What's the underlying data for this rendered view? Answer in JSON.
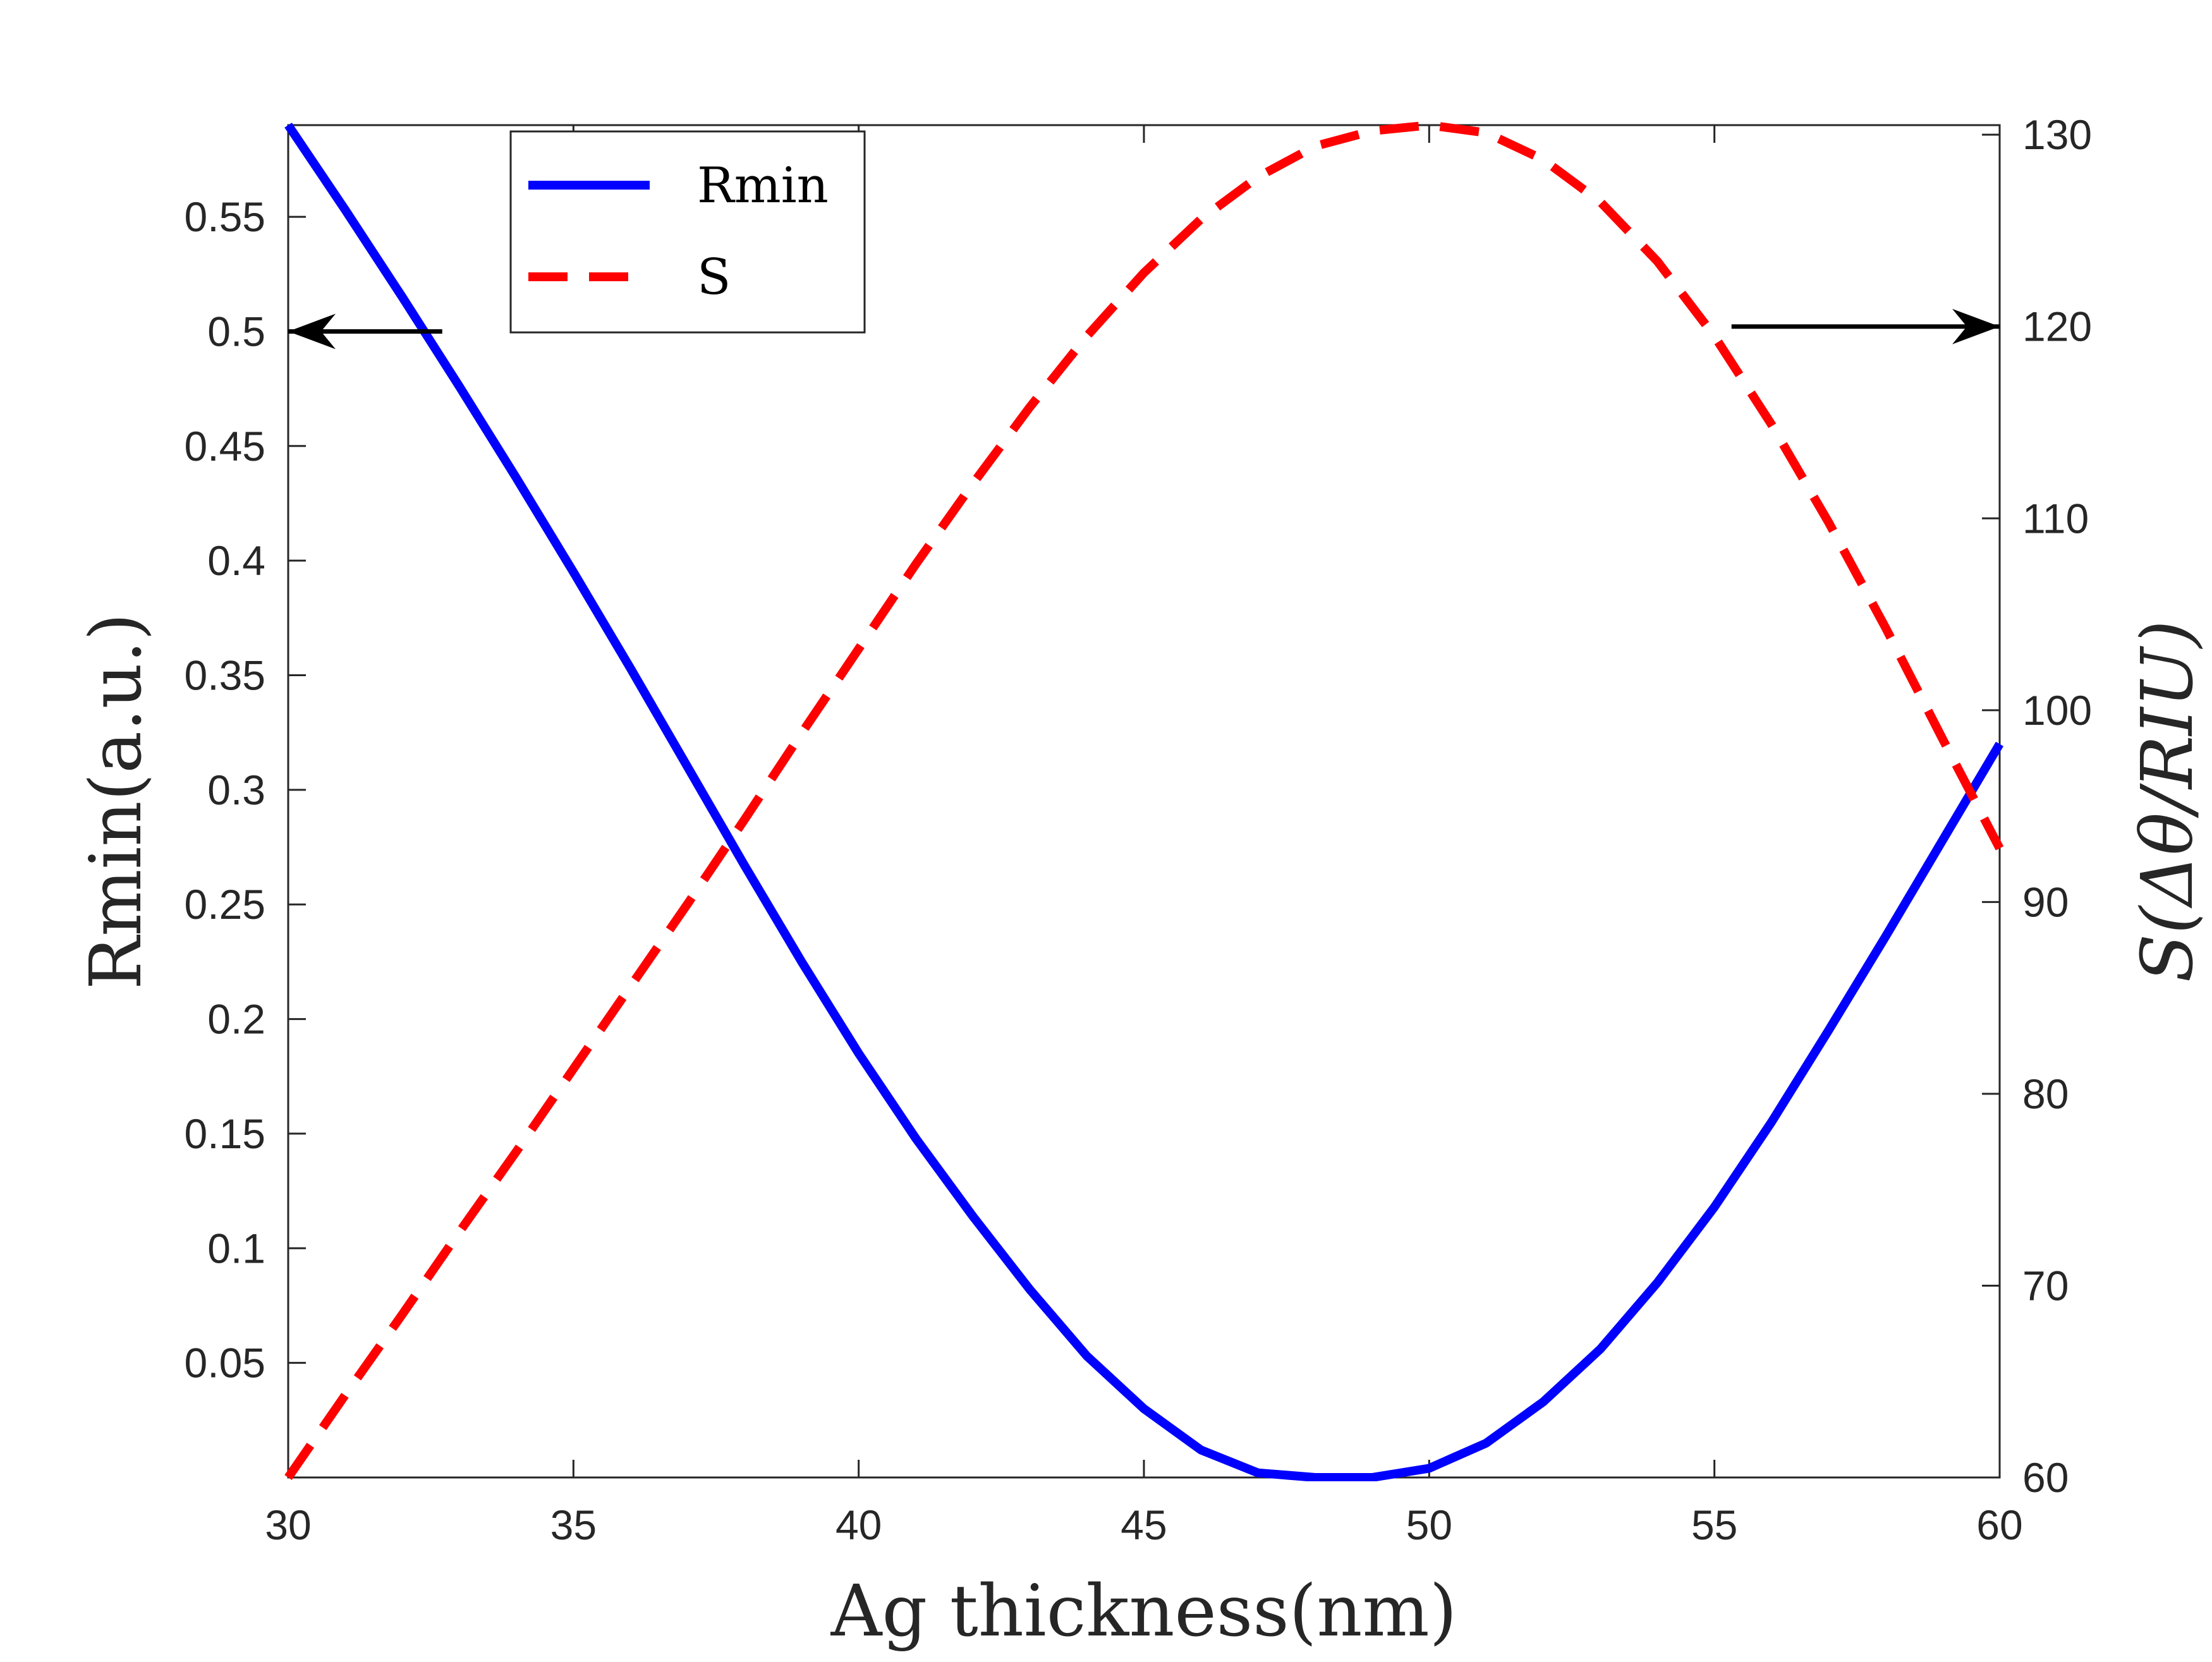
{
  "chart_data": {
    "type": "line",
    "title": "",
    "xlabel": "Ag thickness(nm)",
    "ylabel_left": "Rmin(a.u.)",
    "ylabel_right": "S(Δθ/RIU)",
    "xlim": [
      30,
      60
    ],
    "ylim_left": [
      0,
      0.59
    ],
    "ylim_right": [
      60,
      130.5
    ],
    "grid": false,
    "legend_position": "top-left",
    "x_ticks": [
      {
        "value": 30,
        "label": "30"
      },
      {
        "value": 35,
        "label": "35"
      },
      {
        "value": 40,
        "label": "40"
      },
      {
        "value": 45,
        "label": "45"
      },
      {
        "value": 50,
        "label": "50"
      },
      {
        "value": 55,
        "label": "55"
      },
      {
        "value": 60,
        "label": "60"
      }
    ],
    "y_left_ticks": [
      {
        "value": 0.05,
        "label": "0.05"
      },
      {
        "value": 0.1,
        "label": "0.1"
      },
      {
        "value": 0.15,
        "label": "0.15"
      },
      {
        "value": 0.2,
        "label": "0.2"
      },
      {
        "value": 0.25,
        "label": "0.25"
      },
      {
        "value": 0.3,
        "label": "0.3"
      },
      {
        "value": 0.35,
        "label": "0.35"
      },
      {
        "value": 0.4,
        "label": "0.4"
      },
      {
        "value": 0.45,
        "label": "0.45"
      },
      {
        "value": 0.5,
        "label": "0.5"
      },
      {
        "value": 0.55,
        "label": "0.55"
      }
    ],
    "y_right_ticks": [
      {
        "value": 60,
        "label": "60"
      },
      {
        "value": 70,
        "label": "70"
      },
      {
        "value": 80,
        "label": "80"
      },
      {
        "value": 90,
        "label": "90"
      },
      {
        "value": 100,
        "label": "100"
      },
      {
        "value": 110,
        "label": "110"
      },
      {
        "value": 120,
        "label": "120"
      },
      {
        "value": 130,
        "label": "130"
      }
    ],
    "series": [
      {
        "name": "Rmin",
        "axis": "left",
        "style": "solid",
        "color": "#0000ff",
        "x": [
          30,
          31,
          32,
          33,
          34,
          35,
          36,
          37,
          38,
          39,
          40,
          41,
          42,
          43,
          44,
          45,
          46,
          47,
          48,
          49,
          50,
          51,
          52,
          53,
          54,
          55,
          56,
          57,
          58,
          59,
          60
        ],
        "values": [
          0.59,
          0.553,
          0.515,
          0.476,
          0.436,
          0.395,
          0.353,
          0.31,
          0.267,
          0.225,
          0.185,
          0.148,
          0.114,
          0.082,
          0.053,
          0.03,
          0.012,
          0.002,
          0,
          0,
          0.004,
          0.015,
          0.033,
          0.056,
          0.085,
          0.118,
          0.155,
          0.195,
          0.236,
          0.278,
          0.32
        ]
      },
      {
        "name": "S",
        "axis": "right",
        "style": "dashed",
        "color": "#ff0000",
        "x": [
          30,
          31,
          32,
          33,
          34,
          35,
          36,
          37,
          38,
          39,
          40,
          41,
          42,
          43,
          44,
          45,
          46,
          47,
          48,
          49,
          50,
          51,
          52,
          53,
          54,
          55,
          56,
          57,
          58,
          59,
          60
        ],
        "values": [
          60,
          64.3,
          68.5,
          72.8,
          77,
          81.3,
          85.6,
          89.9,
          94.3,
          98.8,
          103.2,
          107.6,
          111.8,
          115.8,
          119.5,
          122.8,
          125.6,
          127.8,
          129.4,
          130.2,
          130.5,
          130.1,
          128.7,
          126.5,
          123.4,
          119.5,
          114.9,
          109.8,
          104.3,
          98.5,
          92.8
        ]
      }
    ],
    "annotations": [
      {
        "type": "arrow",
        "direction": "left",
        "text": "",
        "x_from": 32.7,
        "x_to": 30,
        "y": 0.5,
        "axis": "left"
      },
      {
        "type": "arrow",
        "direction": "right",
        "text": "",
        "x_from": 55.3,
        "x_to": 60,
        "y": 120,
        "axis": "right"
      }
    ],
    "legend": [
      {
        "label": "Rmin",
        "series": 0
      },
      {
        "label": "S",
        "series": 1
      }
    ]
  }
}
